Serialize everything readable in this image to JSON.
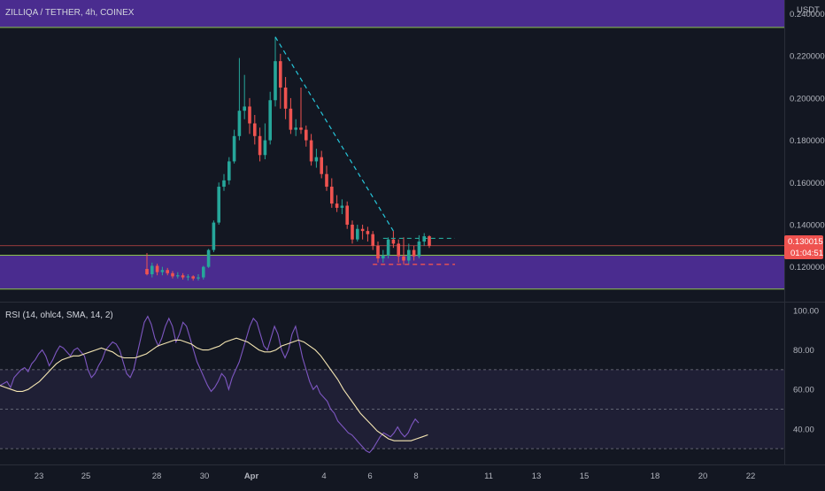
{
  "header": {
    "symbol_title": "ZILLIQA / TETHER, 4h, COINEX",
    "currency": "USDT"
  },
  "colors": {
    "background": "#131722",
    "up": "#26a69a",
    "down": "#ef5350",
    "zone_fill": "#4a2c8f",
    "zone_border": "#8bc34a",
    "rsi_line": "#7e57c2",
    "rsi_sma": "#f5e6b3",
    "axis_text": "#b2b5be",
    "trend_line": "#26c6da"
  },
  "price_label": {
    "value": "0.130015",
    "countdown": "01:04:51"
  },
  "chart_data": [
    {
      "type": "candlestick",
      "title": "ZILLIQA / TETHER, 4h, COINEX",
      "ylabel": "USDT",
      "ylim": [
        0.1035,
        0.2465
      ],
      "y_ticks": [
        "0.240000",
        "0.220000",
        "0.200000",
        "0.180000",
        "0.160000",
        "0.140000",
        "0.120000"
      ],
      "x_ticks": [
        "23",
        "25",
        "28",
        "30",
        "Apr",
        "4",
        "6",
        "8",
        "11",
        "13",
        "15",
        "18",
        "20",
        "22"
      ],
      "current_price": 0.130015,
      "supply_zone": [
        0.2335,
        0.2465
      ],
      "demand_zone": [
        0.1095,
        0.1255
      ],
      "candles": [
        [
          0.119,
          0.1165,
          0.1265,
          0.116
        ],
        [
          0.1165,
          0.1205,
          0.122,
          0.115
        ],
        [
          0.1205,
          0.1175,
          0.1215,
          0.116
        ],
        [
          0.1175,
          0.1185,
          0.12,
          0.116
        ],
        [
          0.1185,
          0.117,
          0.1195,
          0.116
        ],
        [
          0.117,
          0.1155,
          0.118,
          0.1145
        ],
        [
          0.1155,
          0.116,
          0.1175,
          0.1145
        ],
        [
          0.116,
          0.115,
          0.117,
          0.114
        ],
        [
          0.115,
          0.1155,
          0.1165,
          0.1135
        ],
        [
          0.1155,
          0.1145,
          0.116,
          0.1135
        ],
        [
          0.1145,
          0.115,
          0.1165,
          0.1135
        ],
        [
          0.115,
          0.12,
          0.1205,
          0.114
        ],
        [
          0.12,
          0.128,
          0.1285,
          0.1195
        ],
        [
          0.128,
          0.141,
          0.142,
          0.127
        ],
        [
          0.141,
          0.158,
          0.16,
          0.14
        ],
        [
          0.158,
          0.161,
          0.164,
          0.156
        ],
        [
          0.161,
          0.17,
          0.172,
          0.159
        ],
        [
          0.17,
          0.182,
          0.185,
          0.169
        ],
        [
          0.182,
          0.194,
          0.219,
          0.18
        ],
        [
          0.194,
          0.196,
          0.211,
          0.19
        ],
        [
          0.196,
          0.188,
          0.2,
          0.183
        ],
        [
          0.188,
          0.182,
          0.192,
          0.178
        ],
        [
          0.182,
          0.173,
          0.186,
          0.17
        ],
        [
          0.173,
          0.18,
          0.188,
          0.171
        ],
        [
          0.18,
          0.199,
          0.203,
          0.178
        ],
        [
          0.199,
          0.2175,
          0.229,
          0.196
        ],
        [
          0.2175,
          0.205,
          0.221,
          0.195
        ],
        [
          0.205,
          0.195,
          0.21,
          0.19
        ],
        [
          0.195,
          0.185,
          0.2,
          0.183
        ],
        [
          0.185,
          0.186,
          0.19,
          0.182
        ],
        [
          0.186,
          0.185,
          0.205,
          0.183
        ],
        [
          0.185,
          0.18,
          0.187,
          0.177
        ],
        [
          0.18,
          0.17,
          0.183,
          0.168
        ],
        [
          0.17,
          0.172,
          0.176,
          0.167
        ],
        [
          0.172,
          0.164,
          0.175,
          0.162
        ],
        [
          0.164,
          0.158,
          0.168,
          0.156
        ],
        [
          0.158,
          0.15,
          0.162,
          0.148
        ],
        [
          0.15,
          0.148,
          0.154,
          0.146
        ],
        [
          0.148,
          0.149,
          0.152,
          0.145
        ],
        [
          0.149,
          0.14,
          0.151,
          0.138
        ],
        [
          0.14,
          0.133,
          0.142,
          0.131
        ],
        [
          0.133,
          0.138,
          0.14,
          0.132
        ],
        [
          0.138,
          0.137,
          0.14,
          0.133
        ],
        [
          0.137,
          0.1355,
          0.139,
          0.132
        ],
        [
          0.1355,
          0.13,
          0.137,
          0.128
        ],
        [
          0.13,
          0.124,
          0.132,
          0.122
        ],
        [
          0.124,
          0.1255,
          0.128,
          0.122
        ],
        [
          0.1255,
          0.133,
          0.134,
          0.124
        ],
        [
          0.133,
          0.131,
          0.137,
          0.129
        ],
        [
          0.131,
          0.125,
          0.133,
          0.122
        ],
        [
          0.125,
          0.123,
          0.134,
          0.121
        ],
        [
          0.123,
          0.128,
          0.131,
          0.121
        ],
        [
          0.128,
          0.125,
          0.13,
          0.123
        ],
        [
          0.125,
          0.132,
          0.135,
          0.124
        ],
        [
          0.132,
          0.1345,
          0.136,
          0.13
        ],
        [
          0.1345,
          0.13,
          0.135,
          0.129
        ]
      ],
      "annotations": {
        "descending_trendline": [
          [
            0,
            0.229
          ],
          [
            25,
            0.229
          ],
          [
            48,
            0.137
          ]
        ],
        "resistance_dashed": [
          [
            46,
            0.1335
          ],
          [
            60,
            0.1335
          ]
        ],
        "support_dashed": [
          [
            44,
            0.1212
          ],
          [
            60,
            0.1212
          ]
        ]
      }
    },
    {
      "type": "line",
      "title": "RSI (14, ohlc4, SMA, 14, 2)",
      "ylim": [
        22,
        104
      ],
      "y_ticks": [
        "100.00",
        "80.00",
        "60.00",
        "40.00"
      ],
      "band": [
        30,
        70
      ],
      "mid_line": 50,
      "series": [
        {
          "name": "RSI",
          "values": [
            62,
            63,
            64,
            61,
            66,
            68,
            70,
            71,
            69,
            73,
            75,
            78,
            80,
            77,
            72,
            75,
            79,
            82,
            81,
            79,
            77,
            80,
            81,
            79,
            77,
            70,
            66,
            68,
            72,
            75,
            80,
            82,
            84,
            83,
            80,
            74,
            68,
            66,
            70,
            78,
            86,
            94,
            97,
            93,
            86,
            82,
            86,
            92,
            96,
            92,
            84,
            88,
            94,
            92,
            86,
            80,
            74,
            70,
            66,
            62,
            59,
            61,
            64,
            68,
            66,
            60,
            66,
            70,
            74,
            80,
            86,
            92,
            96,
            94,
            88,
            82,
            80,
            86,
            92,
            88,
            80,
            76,
            80,
            88,
            92,
            84,
            76,
            70,
            64,
            60,
            62,
            58,
            56,
            54,
            50,
            48,
            44,
            42,
            40,
            38,
            37,
            35,
            33,
            31,
            29,
            28,
            30,
            33,
            36,
            38,
            37,
            36,
            38,
            41,
            38,
            36,
            38,
            42,
            45,
            43
          ],
          "x": [
            0,
            1.5,
            3,
            4.5,
            6,
            7.5,
            9,
            10.5,
            12,
            13.5,
            15,
            16.5,
            18,
            19.5,
            21,
            22.5,
            24,
            25.5,
            27,
            28.5,
            30,
            31.5,
            33,
            34.5,
            36,
            37.5,
            39,
            40.5,
            42,
            43.5,
            45,
            46.5,
            48,
            49.5,
            51,
            52.5,
            54,
            55.5,
            57,
            58.5,
            60,
            61.5,
            63,
            64.5,
            66,
            67.5,
            69,
            70.5,
            72,
            73.5,
            75,
            76.5,
            78,
            79.5,
            81,
            82.5,
            84,
            85.5,
            87,
            88.5,
            90,
            91.5,
            93,
            94.5,
            96,
            97.5,
            99,
            100.5,
            102,
            103.5,
            105,
            106.5,
            108,
            109.5,
            111,
            112.5,
            114,
            115.5,
            117,
            118.5,
            120,
            121.5,
            123,
            124.5,
            126,
            127.5,
            129,
            130.5,
            132,
            133.5,
            135,
            136.5,
            138,
            139.5,
            141,
            142.5,
            144,
            145.5,
            147,
            148.5,
            150,
            151.5,
            153,
            154.5,
            156,
            157.5,
            159,
            160.5,
            162,
            163.5,
            165,
            166.5,
            168,
            169.5,
            171,
            172.5,
            174,
            175.5,
            177,
            178.5
          ]
        },
        {
          "name": "SMA",
          "values": [
            62,
            61,
            60,
            59,
            59,
            60,
            62,
            64,
            67,
            70,
            73,
            75,
            76,
            77,
            77,
            78,
            79,
            80,
            81,
            80,
            79,
            77,
            76,
            76,
            76,
            77,
            78,
            80,
            82,
            83,
            84,
            85,
            85,
            84,
            83,
            81,
            80,
            80,
            81,
            82,
            84,
            85,
            86,
            85,
            84,
            82,
            80,
            79,
            79,
            80,
            82,
            83,
            84,
            85,
            84,
            82,
            80,
            77,
            73,
            69,
            65,
            60,
            56,
            52,
            48,
            45,
            42,
            39,
            37,
            35,
            34,
            34,
            34,
            34,
            35,
            36,
            37
          ],
          "x": [
            0,
            2.4,
            4.8,
            7.2,
            9.6,
            12,
            14.4,
            16.8,
            19.2,
            21.6,
            24,
            26.4,
            28.8,
            31.2,
            33.6,
            36,
            38.4,
            40.8,
            43.2,
            45.6,
            48,
            50.4,
            52.8,
            55.2,
            57.6,
            60,
            62.4,
            64.8,
            67.2,
            69.6,
            72,
            74.4,
            76.8,
            79.2,
            81.6,
            84,
            86.4,
            88.8,
            91.2,
            93.6,
            96,
            98.4,
            100.8,
            103.2,
            105.6,
            108,
            110.4,
            112.8,
            115.2,
            117.6,
            120,
            122.4,
            124.8,
            127.2,
            129.6,
            132,
            134.4,
            136.8,
            139.2,
            141.6,
            144,
            146.4,
            148.8,
            151.2,
            153.6,
            156,
            158.4,
            160.8,
            163.2,
            165.6,
            168,
            170.4,
            172.8,
            175.2,
            177.6,
            180,
            182.4
          ]
        }
      ]
    }
  ]
}
